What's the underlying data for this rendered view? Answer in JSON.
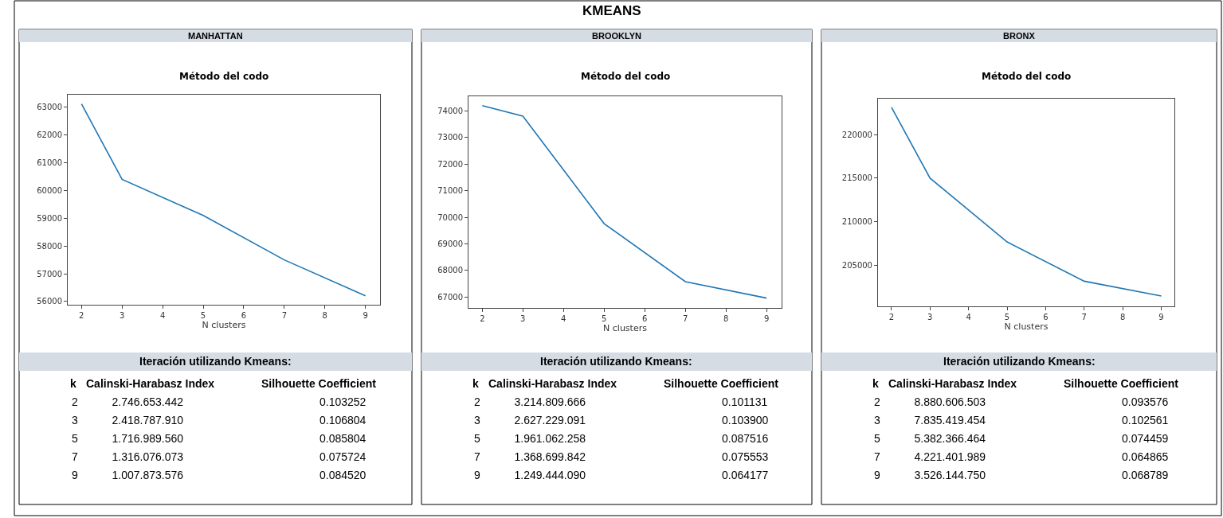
{
  "chart_data": [
    {
      "type": "other",
      "title": "KMEANS"
    },
    {
      "type": "line",
      "title": "MANHATTAN",
      "subtitle": "Método del codo",
      "xlabel": "N clusters",
      "x": [
        2,
        3,
        5,
        7,
        9
      ],
      "values": [
        63120,
        60400,
        59100,
        57500,
        56210
      ],
      "color": "#1f77b4",
      "xlim": [
        1.66,
        9.36
      ],
      "xticks": [
        2,
        3,
        4,
        5,
        6,
        7,
        8,
        9
      ],
      "ylim": [
        55885,
        63450
      ],
      "yticks": [
        56000,
        57000,
        58000,
        59000,
        60000,
        61000,
        62000,
        63000
      ]
    },
    {
      "type": "other",
      "title": "Iteración utilizando Kmeans:",
      "annotations": [
        "k",
        "Calinski-Harabasz Index",
        "Silhouette Coefficient",
        "2 2.746.653.442",
        "0.103252",
        "3 2.418.787.910",
        "0.106804",
        "5 1.716.989.560",
        "0.085804",
        "7 1.316.076.073",
        "0.075724",
        "9 1.007.873.576",
        "0.084520"
      ]
    },
    {
      "type": "line",
      "title": "BROOKLYN",
      "subtitle": "Método del codo",
      "xlabel": "N clusters",
      "x": [
        2,
        3,
        5,
        7,
        9
      ],
      "values": [
        74200,
        73800,
        69760,
        67580,
        66960
      ],
      "color": "#1f77b4",
      "xlim": [
        1.66,
        9.37
      ],
      "xticks": [
        2,
        3,
        4,
        5,
        6,
        7,
        8,
        9
      ],
      "ylim": [
        66590,
        74550
      ],
      "yticks": [
        67000,
        68000,
        69000,
        70000,
        71000,
        72000,
        73000,
        74000
      ]
    },
    {
      "type": "other",
      "title": "Iteración utilizando Kmeans:",
      "annotations": [
        "k",
        "Calinski-Harabasz Index",
        "Silhouette Coefficient",
        "2 3.214.809.666",
        "0.101131",
        "3 2.627.229.091",
        "0.103900",
        "5 1.961.062.258",
        "0.087516",
        "7 1.368.699.842",
        "0.075553",
        "9 1.249.444.090",
        "0.064177"
      ]
    },
    {
      "type": "line",
      "title": "BRONX",
      "subtitle": "Método del codo",
      "xlabel": "N clusters",
      "x": [
        2,
        3,
        5,
        7,
        9
      ],
      "values": [
        223100,
        215000,
        207700,
        203200,
        201500
      ],
      "color": "#1f77b4",
      "xlim": [
        1.65,
        9.34
      ],
      "xticks": [
        2,
        3,
        4,
        5,
        6,
        7,
        8,
        9
      ],
      "ylim": [
        200320,
        224100
      ],
      "yticks": [
        205000,
        210000,
        215000,
        220000
      ]
    },
    {
      "type": "other",
      "title": "Iteración utilizando Kmeans:",
      "annotations": [
        "k",
        "Calinski-Harabasz Index",
        "Silhouette Coefficient",
        "2 8.880.606.503",
        "0.093576",
        "3 7.835.419.454",
        "0.102561",
        "5 5.382.366.464",
        "0.074459",
        "7 4.221.401.989",
        "0.064865",
        "9 3.526.144.750",
        "0.068789"
      ]
    }
  ]
}
